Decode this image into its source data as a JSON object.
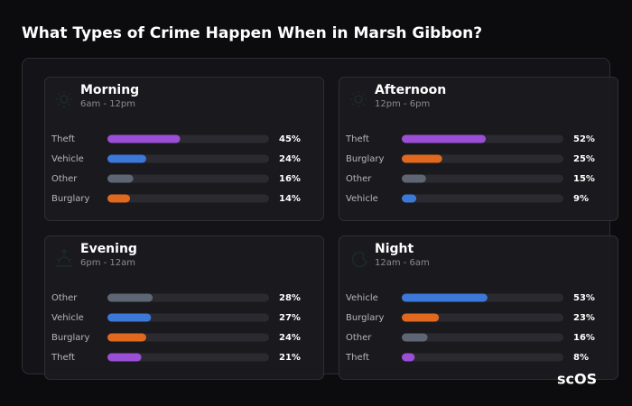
{
  "title": "What Types of Crime Happen When in Marsh Gibbon?",
  "brand": "scOS",
  "chart_data": [
    {
      "type": "bar",
      "title": "Morning",
      "subtitle": "6am - 12pm",
      "categories": [
        "Theft",
        "Vehicle",
        "Other",
        "Burglary"
      ],
      "values": [
        45,
        24,
        16,
        14
      ],
      "value_labels": [
        "45%",
        "24%",
        "16%",
        "14%"
      ],
      "colors": [
        "#9a4fd6",
        "#3b78d8",
        "#5e6573",
        "#e0691f"
      ],
      "xlim": [
        0,
        100
      ]
    },
    {
      "type": "bar",
      "title": "Afternoon",
      "subtitle": "12pm - 6pm",
      "categories": [
        "Theft",
        "Burglary",
        "Other",
        "Vehicle"
      ],
      "values": [
        52,
        25,
        15,
        9
      ],
      "value_labels": [
        "52%",
        "25%",
        "15%",
        "9%"
      ],
      "colors": [
        "#9a4fd6",
        "#e0691f",
        "#5e6573",
        "#3b78d8"
      ],
      "xlim": [
        0,
        100
      ]
    },
    {
      "type": "bar",
      "title": "Evening",
      "subtitle": "6pm - 12am",
      "categories": [
        "Other",
        "Vehicle",
        "Burglary",
        "Theft"
      ],
      "values": [
        28,
        27,
        24,
        21
      ],
      "value_labels": [
        "28%",
        "27%",
        "24%",
        "21%"
      ],
      "colors": [
        "#5e6573",
        "#3b78d8",
        "#e0691f",
        "#9a4fd6"
      ],
      "xlim": [
        0,
        100
      ]
    },
    {
      "type": "bar",
      "title": "Night",
      "subtitle": "12am - 6am",
      "categories": [
        "Vehicle",
        "Burglary",
        "Other",
        "Theft"
      ],
      "values": [
        53,
        23,
        16,
        8
      ],
      "value_labels": [
        "53%",
        "23%",
        "16%",
        "8%"
      ],
      "colors": [
        "#3b78d8",
        "#e0691f",
        "#5e6573",
        "#9a4fd6"
      ],
      "xlim": [
        0,
        100
      ]
    }
  ]
}
